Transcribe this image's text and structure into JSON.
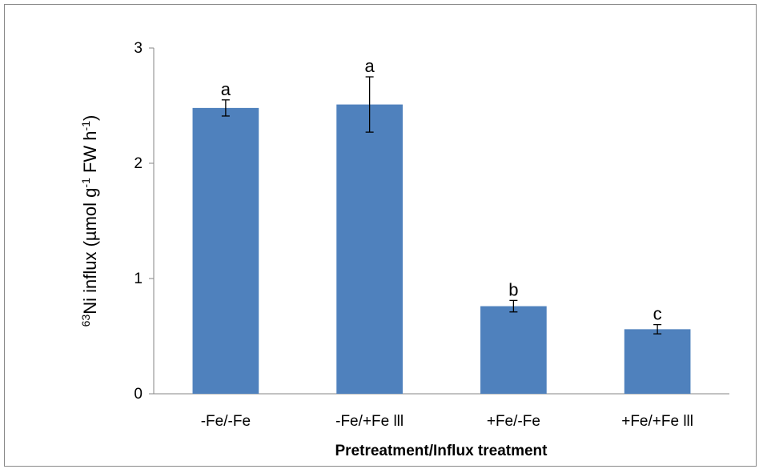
{
  "chart_data": {
    "type": "bar",
    "categories": [
      "-Fe/-Fe",
      "-Fe/+Fe lll",
      "+Fe/-Fe",
      "+Fe/+Fe lll"
    ],
    "values": [
      2.48,
      2.51,
      0.76,
      0.56
    ],
    "errors": [
      0.07,
      0.24,
      0.05,
      0.04
    ],
    "letters": [
      "a",
      "a",
      "b",
      "c"
    ],
    "xlabel": "Pretreatment/Influx treatment",
    "ylabel": {
      "sup1": "63",
      "part1": "Ni influx (µmol g",
      "sup2": "-1",
      "part2": " FW h",
      "sup3": "-1",
      "part3": ")"
    },
    "ylim": [
      0,
      3
    ],
    "yticks": [
      0,
      1,
      2,
      3
    ],
    "grid": false,
    "bar_color": "#4f81bd"
  }
}
